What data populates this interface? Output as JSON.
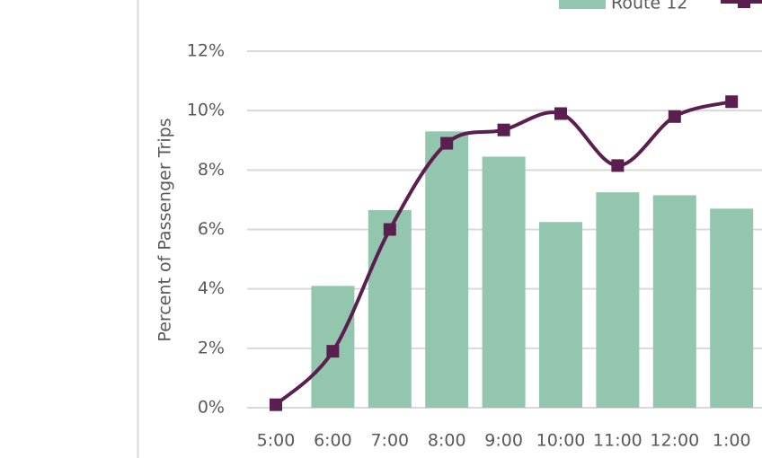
{
  "chart_data": {
    "type": "bar-line",
    "y_axis_label": "Percent of Passenger Trips",
    "categories": [
      "5:00",
      "6:00",
      "7:00",
      "8:00",
      "9:00",
      "10:00",
      "11:00",
      "12:00",
      "1:00"
    ],
    "series": [
      {
        "name": "Route 12",
        "type": "bar",
        "color": "#93c6ae",
        "values": [
          0,
          4.1,
          6.65,
          9.3,
          8.45,
          6.25,
          7.25,
          7.15,
          6.7
        ]
      },
      {
        "type": "line",
        "color": "#5a1f4e",
        "values": [
          0.1,
          1.9,
          6.0,
          8.9,
          9.35,
          9.9,
          8.15,
          9.8,
          10.3
        ]
      }
    ],
    "ylim": [
      0,
      12
    ],
    "yticks": [
      {
        "value": 0,
        "label": "0%"
      },
      {
        "value": 2,
        "label": "2%"
      },
      {
        "value": 4,
        "label": "4%"
      },
      {
        "value": 6,
        "label": "6%"
      },
      {
        "value": 8,
        "label": "8%"
      },
      {
        "value": 10,
        "label": "10%"
      },
      {
        "value": 12,
        "label": "12%"
      }
    ],
    "grid": true
  }
}
